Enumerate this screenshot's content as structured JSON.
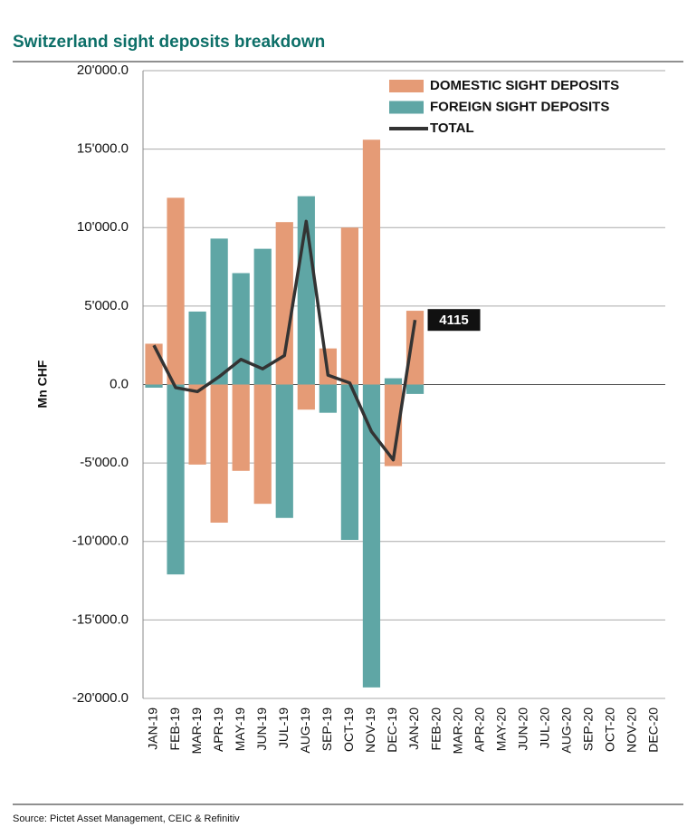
{
  "chart_data": {
    "type": "bar",
    "title": "Switzerland sight deposits breakdown",
    "y_label": "Mn CHF",
    "source": "Source: Pictet Asset Management, CEIC & Refinitiv",
    "categories": [
      "JAN-19",
      "FEB-19",
      "MAR-19",
      "APR-19",
      "MAY-19",
      "JUN-19",
      "JUL-19",
      "AUG-19",
      "SEP-19",
      "OCT-19",
      "NOV-19",
      "DEC-19",
      "JAN-20",
      "FEB-20",
      "MAR-20",
      "APR-20",
      "MAY-20",
      "JUN-20",
      "JUL-20",
      "AUG-20",
      "SEP-20",
      "OCT-20",
      "NOV-20",
      "DEC-20"
    ],
    "series": [
      {
        "name": "DOMESTIC SIGHT DEPOSITS",
        "type": "bar",
        "color": "#e59b76",
        "values": [
          2600,
          11900,
          -5100,
          -8800,
          -5500,
          -7600,
          10350,
          -1600,
          2300,
          10000,
          15600,
          -5200,
          4700,
          null,
          null,
          null,
          null,
          null,
          null,
          null,
          null,
          null,
          null,
          null
        ]
      },
      {
        "name": "FOREIGN SIGHT DEPOSITS",
        "type": "bar",
        "color": "#5fa6a5",
        "values": [
          -200,
          -12100,
          4650,
          9300,
          7100,
          8650,
          -8500,
          12000,
          -1800,
          -9900,
          -19300,
          400,
          -600,
          null,
          null,
          null,
          null,
          null,
          null,
          null,
          null,
          null,
          null,
          null
        ]
      },
      {
        "name": "TOTAL",
        "type": "line",
        "color": "#333333",
        "values": [
          2500,
          -200,
          -450,
          500,
          1600,
          1000,
          1850,
          10400,
          600,
          100,
          -3000,
          -4800,
          4115,
          null,
          null,
          null,
          null,
          null,
          null,
          null,
          null,
          null,
          null,
          null
        ]
      }
    ],
    "ylim": [
      -20000,
      20000
    ],
    "yticks": [
      {
        "value": -20000,
        "label": "-20'000.0"
      },
      {
        "value": -15000,
        "label": "-15'000.0"
      },
      {
        "value": -10000,
        "label": "-10'000.0"
      },
      {
        "value": -5000,
        "label": "-5'000.0"
      },
      {
        "value": 0,
        "label": "0.0"
      },
      {
        "value": 5000,
        "label": "5'000.0"
      },
      {
        "value": 10000,
        "label": "10'000.0"
      },
      {
        "value": 15000,
        "label": "15'000.0"
      },
      {
        "value": 20000,
        "label": "20'000.0"
      }
    ],
    "grid": true,
    "legend": "top-right"
  }
}
